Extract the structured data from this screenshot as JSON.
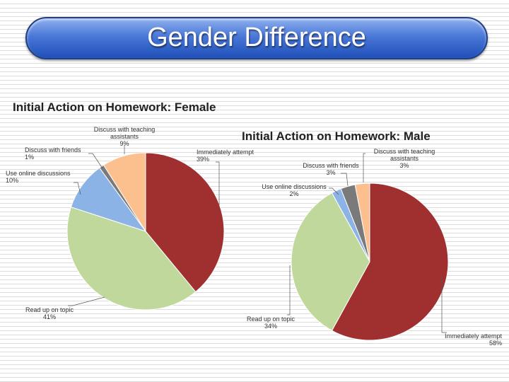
{
  "slide": {
    "title": "Gender Difference"
  },
  "colors": {
    "immediately": "#a03030",
    "read": "#c1d89c",
    "online": "#8cb3e5",
    "friends": "#7a7a7a",
    "ta": "#fcc08e"
  },
  "chart_data": [
    {
      "type": "pie",
      "title": "Initial Action on Homework: Female",
      "slices": [
        {
          "label": "Immediately attempt",
          "value": 39,
          "value_label": "39%",
          "color": "#a03030"
        },
        {
          "label": "Read up on topic",
          "value": 41,
          "value_label": "41%",
          "color": "#c1d89c"
        },
        {
          "label": "Use online discussions",
          "value": 10,
          "value_label": "10%",
          "color": "#8cb3e5"
        },
        {
          "label": "Discuss with friends",
          "value": 1,
          "value_label": "1%",
          "color": "#7a7a7a"
        },
        {
          "label": "Discuss with teaching assistants",
          "value": 9,
          "value_label": "9%",
          "color": "#fcc08e"
        }
      ]
    },
    {
      "type": "pie",
      "title": "Initial Action on Homework: Male",
      "slices": [
        {
          "label": "Immediately attempt",
          "value": 58,
          "value_label": "58%",
          "color": "#a03030"
        },
        {
          "label": "Read up on topic",
          "value": 34,
          "value_label": "34%",
          "color": "#c1d89c"
        },
        {
          "label": "Use online discussions",
          "value": 2,
          "value_label": "2%",
          "color": "#8cb3e5"
        },
        {
          "label": "Discuss with friends",
          "value": 3,
          "value_label": "3%",
          "color": "#7a7a7a"
        },
        {
          "label": "Discuss with teaching assistants",
          "value": 3,
          "value_label": "3%",
          "color": "#fcc08e"
        }
      ]
    }
  ]
}
